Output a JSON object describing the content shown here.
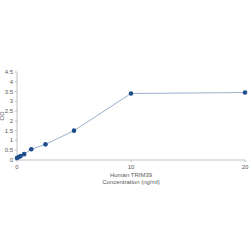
{
  "chart_data": {
    "type": "line",
    "x_label": "Human TRIM39 Concentration (ng/ml)",
    "y_label": "OD",
    "series": [
      {
        "name": "TRIM39",
        "color": "#1f4e8c",
        "marker": "circle",
        "line_style": "solid",
        "x": [
          0,
          0.156,
          0.312,
          0.625,
          1.25,
          2.5,
          5,
          10,
          20
        ],
        "values": [
          0.1,
          0.15,
          0.2,
          0.3,
          0.55,
          0.8,
          1.5,
          3.4,
          3.45
        ]
      }
    ],
    "xlim": [
      0,
      20
    ],
    "xticks": [
      0,
      10,
      20
    ],
    "ylim": [
      0,
      4.5
    ],
    "yticks": [
      0,
      0.5,
      1,
      1.5,
      2,
      2.5,
      3,
      3.5,
      4,
      4.5
    ],
    "grid": false
  }
}
